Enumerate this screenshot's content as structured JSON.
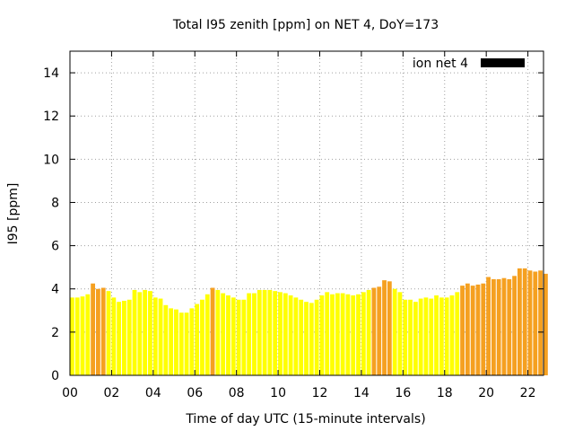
{
  "chart_data": {
    "type": "bar",
    "title": "Total I95 zenith [ppm] on NET 4, DoY=173",
    "xlabel": "Time of day UTC (15-minute intervals)",
    "ylabel": "I95 [ppm]",
    "xlim": [
      0,
      22.75
    ],
    "ylim": [
      0,
      15
    ],
    "x_ticks": [
      0,
      2,
      4,
      6,
      8,
      10,
      12,
      14,
      16,
      18,
      20,
      22
    ],
    "x_tick_labels": [
      "00",
      "02",
      "04",
      "06",
      "08",
      "10",
      "12",
      "14",
      "16",
      "18",
      "20",
      "22"
    ],
    "y_ticks": [
      0,
      2,
      4,
      6,
      8,
      10,
      12,
      14
    ],
    "y_tick_labels": [
      "0",
      "2",
      "4",
      "6",
      "8",
      "10",
      "12",
      "14"
    ],
    "grid": true,
    "legend": {
      "label": "ion net 4",
      "placement": "top-right",
      "color": "#000000"
    },
    "colors": {
      "low": "#ffff00",
      "high": "#f5a020"
    },
    "x_interval_hours": 0.25,
    "series": [
      {
        "values": [
          3.6,
          3.6,
          3.65,
          3.75,
          4.25,
          4.0,
          4.05,
          3.9,
          3.6,
          3.4,
          3.45,
          3.5,
          3.95,
          3.85,
          3.95,
          3.9,
          3.6,
          3.55,
          3.25,
          3.1,
          3.05,
          2.9,
          2.9,
          3.1,
          3.3,
          3.5,
          3.75,
          4.05,
          3.95,
          3.8,
          3.7,
          3.6,
          3.5,
          3.5,
          3.8,
          3.8,
          3.95,
          3.95,
          3.95,
          3.9,
          3.85,
          3.8,
          3.7,
          3.6,
          3.5,
          3.4,
          3.35,
          3.5,
          3.7,
          3.85,
          3.75,
          3.8,
          3.8,
          3.75,
          3.7,
          3.75,
          3.85,
          3.95,
          4.05,
          4.1,
          4.4,
          4.35,
          4.0,
          3.85,
          3.5,
          3.5,
          3.4,
          3.55,
          3.6,
          3.55,
          3.7,
          3.6,
          3.6,
          3.7,
          3.85,
          4.15,
          4.25,
          4.15,
          4.2,
          4.25,
          4.55,
          4.45,
          4.45,
          4.5,
          4.45,
          4.6,
          4.95,
          4.95,
          4.85,
          4.8,
          4.85,
          4.7
        ],
        "tiers": [
          0,
          0,
          0,
          0,
          1,
          1,
          1,
          0,
          0,
          0,
          0,
          0,
          0,
          0,
          0,
          0,
          0,
          0,
          0,
          0,
          0,
          0,
          0,
          0,
          0,
          0,
          0,
          1,
          0,
          0,
          0,
          0,
          0,
          0,
          0,
          0,
          0,
          0,
          0,
          0,
          0,
          0,
          0,
          0,
          0,
          0,
          0,
          0,
          0,
          0,
          0,
          0,
          0,
          0,
          0,
          0,
          0,
          0,
          1,
          1,
          1,
          1,
          0,
          0,
          0,
          0,
          0,
          0,
          0,
          0,
          0,
          0,
          0,
          0,
          0,
          1,
          1,
          1,
          1,
          1,
          1,
          1,
          1,
          1,
          1,
          1,
          1,
          1,
          1,
          1,
          1,
          1
        ]
      }
    ]
  }
}
